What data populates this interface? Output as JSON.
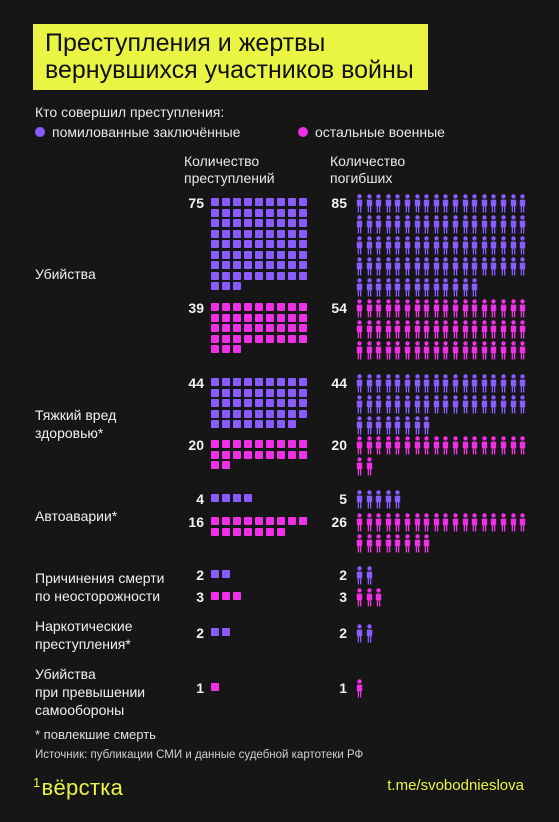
{
  "title_lines": [
    "Преступления и жертвы",
    "вернувшихся участников войны"
  ],
  "legend": {
    "title": "Кто совершил преступления:",
    "items": [
      {
        "label": "помилованные заключённые",
        "color": "#8a5cff"
      },
      {
        "label": "остальные военные",
        "color": "#f030e6"
      }
    ]
  },
  "columns": [
    "Количество преступлений",
    "Количество погибших"
  ],
  "categories": [
    {
      "label": "Убийства",
      "label_lines": [
        "Убийства"
      ]
    },
    {
      "label": "Тяжкий вред здоровью*",
      "label_lines": [
        "Тяжкий вред",
        "здоровью*"
      ]
    },
    {
      "label": "Автоаварии*",
      "label_lines": [
        "Автоаварии*"
      ]
    },
    {
      "label": "Причинения смерти по неосторожности",
      "label_lines": [
        "Причинения смерти",
        "по неосторожности"
      ]
    },
    {
      "label": "Наркотические преступления*",
      "label_lines": [
        "Наркотические",
        "преступления*"
      ]
    },
    {
      "label": "Убийства при превышении самообороны",
      "label_lines": [
        "Убийства",
        "при превышении",
        "самообороны"
      ]
    }
  ],
  "chart_data": {
    "type": "bar",
    "categories": [
      "Убийства",
      "Тяжкий вред здоровью*",
      "Автоаварии*",
      "Причинения смерти по неосторожности",
      "Наркотические преступления*",
      "Убийства при превышении самообороны"
    ],
    "crimes": [
      {
        "name": "помилованные заключённые",
        "values": [
          75,
          44,
          4,
          2,
          2,
          0
        ]
      },
      {
        "name": "остальные военные",
        "values": [
          39,
          20,
          16,
          3,
          0,
          1
        ]
      }
    ],
    "deaths": [
      {
        "name": "помилованные заключённые",
        "values": [
          85,
          44,
          5,
          2,
          2,
          0
        ]
      },
      {
        "name": "остальные военные",
        "values": [
          54,
          20,
          26,
          3,
          0,
          1
        ]
      }
    ]
  },
  "footnote": "* повлекшие смерть",
  "source": "Источник: публикации СМИ и данные судебной картотеки РФ",
  "logo": "вёрстка",
  "link": "t.me/svobodnieslova"
}
